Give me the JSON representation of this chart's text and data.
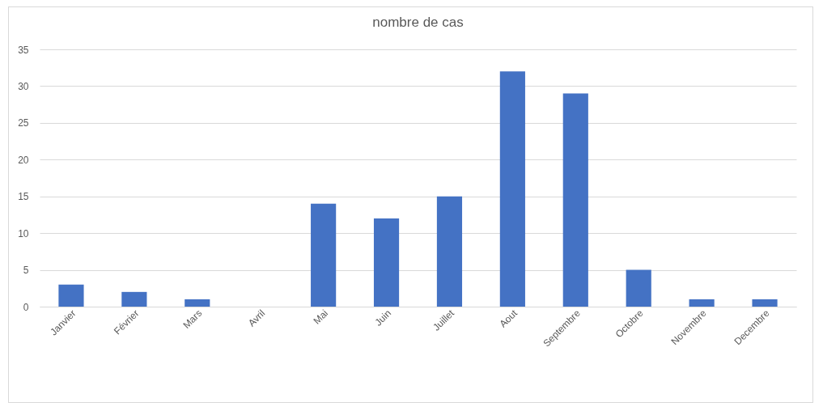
{
  "chart_data": {
    "type": "bar",
    "title": "nombre de cas",
    "categories": [
      "Janvier",
      "Février",
      "Mars",
      "Avril",
      "Mai",
      "Juin",
      "Juillet",
      "Aout",
      "Septembre",
      "Octobre",
      "Novembre",
      "Decembre"
    ],
    "values": [
      3,
      2,
      1,
      0,
      14,
      12,
      15,
      32,
      29,
      5,
      1,
      1
    ],
    "color": "#4472c4",
    "ylim": [
      0,
      35
    ],
    "yticks": [
      0,
      5,
      10,
      15,
      20,
      25,
      30,
      35
    ],
    "grid": "y"
  }
}
